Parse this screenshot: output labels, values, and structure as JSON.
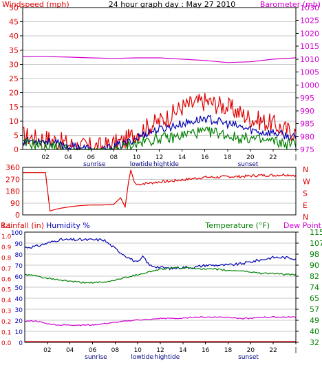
{
  "title": "24 hour graph day : May 27 2010",
  "colors": {
    "wind": "#e00000",
    "avgwind": "#0000b0",
    "gust": "#008000",
    "baro": "#d000d0",
    "dir": "#e00000",
    "rain": "#e00000",
    "humidity": "#0000b0",
    "temp": "#008000",
    "dew": "#d000d0",
    "axis": "#000000",
    "grid": "#c8c8c8"
  },
  "chart_data": [
    {
      "type": "line",
      "title": "24 hour graph day : May 27 2010",
      "left_label": "Windspeed (mph)",
      "right_label": "Barometer (mb)",
      "x_ticks": [
        "02",
        "04",
        "06",
        "08",
        "10",
        "12",
        "14",
        "16",
        "18",
        "20",
        "22",
        "|"
      ],
      "x_ticks_hours": [
        2,
        4,
        6,
        8,
        10,
        12,
        14,
        16,
        18,
        20,
        22,
        24
      ],
      "events": [
        {
          "label": "sunrise",
          "hour": 6.3
        },
        {
          "label": "lowtide",
          "hour": 10.4
        },
        {
          "label": "hightide",
          "hour": 12.6
        },
        {
          "label": "sunset",
          "hour": 19.8
        }
      ],
      "y_left_ticks": [
        0,
        5,
        10,
        15,
        20,
        25,
        30,
        35,
        40,
        45,
        50
      ],
      "y_left_range": [
        0,
        50
      ],
      "y_right_ticks": [
        975,
        980,
        985,
        990,
        995,
        1000,
        1005,
        1010,
        1015,
        1020,
        1025,
        1030
      ],
      "y_right_range": [
        975,
        1030
      ],
      "series": [
        {
          "key": "wind",
          "axis": "left",
          "hours": [
            0,
            1,
            2,
            3,
            4,
            5,
            6,
            7,
            8,
            9,
            10,
            11,
            12,
            13,
            14,
            15,
            16,
            17,
            18,
            19,
            20,
            21,
            22,
            23,
            24
          ],
          "values": [
            5,
            4,
            4,
            3,
            2,
            1,
            1,
            1,
            2,
            3,
            6,
            8,
            10,
            12,
            15,
            16,
            17,
            16,
            15,
            13,
            11,
            10,
            9,
            7,
            6
          ]
        },
        {
          "key": "avgwind",
          "axis": "left",
          "hours": [
            0,
            1,
            2,
            3,
            4,
            5,
            6,
            7,
            8,
            9,
            10,
            11,
            12,
            13,
            14,
            15,
            16,
            17,
            18,
            19,
            20,
            21,
            22,
            23,
            24
          ],
          "values": [
            3,
            3,
            3,
            2,
            1,
            1,
            0,
            0,
            1,
            2,
            4,
            6,
            7,
            8,
            9,
            10,
            11,
            10,
            9,
            8,
            7,
            6,
            6,
            5,
            4
          ]
        },
        {
          "key": "gust",
          "axis": "left",
          "hours": [
            0,
            1,
            2,
            3,
            4,
            5,
            6,
            7,
            8,
            9,
            10,
            11,
            12,
            13,
            14,
            15,
            16,
            17,
            18,
            19,
            20,
            21,
            22,
            23,
            24
          ],
          "values": [
            2,
            2,
            1,
            1,
            0,
            0,
            0,
            0,
            0,
            1,
            2,
            3,
            4,
            4,
            5,
            6,
            6,
            6,
            5,
            4,
            4,
            3,
            3,
            2,
            2
          ]
        },
        {
          "key": "baro",
          "axis": "right",
          "hours": [
            0,
            2,
            4,
            6,
            8,
            10,
            12,
            14,
            16,
            18,
            20,
            22,
            24
          ],
          "values": [
            1011.0,
            1011.0,
            1010.8,
            1010.5,
            1010.3,
            1010.5,
            1010.5,
            1010.0,
            1009.5,
            1008.7,
            1009.0,
            1010.0,
            1010.5
          ]
        }
      ]
    },
    {
      "type": "line",
      "title": "",
      "y_ticks": [
        0,
        90,
        180,
        270,
        360
      ],
      "y_range": [
        0,
        360
      ],
      "right_letters": [
        "N",
        "W",
        "S",
        "E",
        "N"
      ],
      "series": [
        {
          "key": "dir",
          "hours": [
            0,
            2,
            2.4,
            3,
            4,
            5,
            6,
            7,
            8,
            8.6,
            9,
            9.3,
            9.5,
            9.8,
            10,
            11,
            12,
            13,
            14,
            15,
            16,
            17,
            18,
            19,
            20,
            21,
            22,
            23,
            24
          ],
          "values": [
            320,
            320,
            30,
            45,
            60,
            70,
            75,
            75,
            80,
            130,
            60,
            250,
            340,
            250,
            230,
            240,
            250,
            255,
            265,
            275,
            285,
            285,
            290,
            290,
            295,
            300,
            300,
            305,
            300
          ]
        }
      ]
    },
    {
      "type": "line",
      "title": "",
      "left_label": "Rainfall (in)",
      "left2_label": "Humidity %",
      "right_label": "Temperature (°F)",
      "right2_label": "Dew Point",
      "x_ticks": [
        "02",
        "04",
        "06",
        "08",
        "10",
        "12",
        "14",
        "16",
        "18",
        "20",
        "22",
        "|"
      ],
      "events": [
        {
          "label": "sunrise",
          "hour": 6.3
        },
        {
          "label": "lowtide",
          "hour": 10.4
        },
        {
          "label": "hightide",
          "hour": 12.6
        },
        {
          "label": "sunset",
          "hour": 19.8
        }
      ],
      "rain_ticks": [
        "0.0",
        "0.1",
        "0.2",
        "0.3",
        "0.4",
        "0.5",
        "0.6",
        "0.7",
        "0.8",
        "0.9",
        "1.0",
        "1.1"
      ],
      "humidity_ticks": [
        0,
        10,
        20,
        30,
        40,
        50,
        60,
        70,
        80,
        90,
        100
      ],
      "humidity_range": [
        0,
        100
      ],
      "temp_ticks": [
        32,
        40,
        49,
        57,
        65,
        74,
        82,
        90,
        98,
        107,
        115
      ],
      "temp_range": [
        32,
        115
      ],
      "series": [
        {
          "key": "rain",
          "axis": "rain",
          "hours": [
            0,
            24
          ],
          "values": [
            0,
            0
          ]
        },
        {
          "key": "humidity",
          "axis": "humidity",
          "hours": [
            0,
            1,
            2,
            3,
            4,
            5,
            6,
            7,
            8,
            9,
            10,
            10.5,
            11,
            12,
            13,
            14,
            15,
            16,
            17,
            18,
            19,
            20,
            21,
            22,
            23,
            24
          ],
          "values": [
            86,
            87,
            90,
            93,
            93,
            93,
            93,
            93,
            85,
            78,
            72,
            78,
            70,
            68,
            67,
            68,
            68,
            70,
            70,
            70,
            71,
            73,
            75,
            77,
            77,
            76
          ]
        },
        {
          "key": "temp",
          "axis": "temp",
          "hours": [
            0,
            1,
            2,
            3,
            4,
            5,
            6,
            7,
            8,
            9,
            10,
            11,
            12,
            13,
            14,
            15,
            16,
            17,
            18,
            19,
            20,
            21,
            22,
            23,
            24
          ],
          "values": [
            83,
            82,
            80,
            79,
            78,
            77,
            77,
            77,
            79,
            81,
            83,
            85,
            87,
            88,
            88,
            88,
            87,
            87,
            86,
            86,
            85,
            84,
            84,
            83,
            83
          ]
        },
        {
          "key": "dew",
          "axis": "temp",
          "hours": [
            0,
            1,
            2,
            3,
            4,
            5,
            6,
            7,
            8,
            9,
            10,
            11,
            12,
            13,
            14,
            15,
            16,
            17,
            18,
            19,
            20,
            21,
            22,
            23,
            24
          ],
          "values": [
            48,
            48,
            46,
            45,
            45,
            45,
            45,
            46,
            47,
            48,
            49,
            49,
            50,
            50,
            50,
            51,
            51,
            51,
            51,
            50,
            50,
            51,
            51,
            51,
            51
          ]
        }
      ]
    }
  ]
}
